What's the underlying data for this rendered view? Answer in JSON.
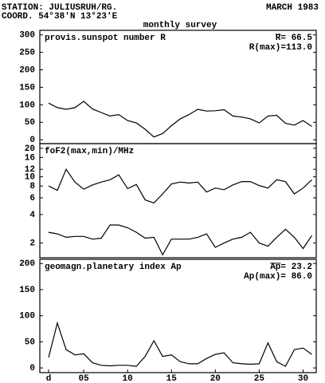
{
  "header": {
    "station": "STATION: JULIUSRUH/RG.",
    "coord": "COORD. 54°38'N 13°23'E",
    "date": "MARCH 1983",
    "subtitle": "monthly survey"
  },
  "chart_data": [
    {
      "type": "line",
      "title": "provis.sunspot number R",
      "annotations": [
        "R= 66.5",
        "R(max)=113.0"
      ],
      "x": [
        1,
        2,
        3,
        4,
        5,
        6,
        7,
        8,
        9,
        10,
        11,
        12,
        13,
        14,
        15,
        16,
        17,
        18,
        19,
        20,
        21,
        22,
        23,
        24,
        25,
        26,
        27,
        28,
        29,
        30,
        31
      ],
      "xlim": [
        0,
        31.5
      ],
      "ylim": [
        -11,
        313
      ],
      "yticks": [
        0,
        50,
        100,
        150,
        200,
        250,
        300
      ],
      "log": false,
      "series": [
        {
          "color": "#000000",
          "values": [
            105,
            92,
            87,
            92,
            110,
            88,
            78,
            68,
            72,
            55,
            48,
            30,
            8,
            18,
            40,
            60,
            72,
            87,
            82,
            83,
            86,
            68,
            65,
            60,
            48,
            68,
            70,
            47,
            42,
            55,
            38
          ]
        }
      ]
    },
    {
      "type": "line",
      "title": "foF2(max,min)/MHz",
      "annotations": [],
      "x": [
        1,
        2,
        3,
        4,
        5,
        6,
        7,
        8,
        9,
        10,
        11,
        12,
        13,
        14,
        15,
        16,
        17,
        18,
        19,
        20,
        21,
        22,
        23,
        24,
        25,
        26,
        27,
        28,
        29,
        30,
        31
      ],
      "xlim": [
        0,
        31.5
      ],
      "ylim": [
        1.4,
        22.4
      ],
      "yticks": [
        2,
        4,
        6,
        8,
        10,
        12,
        16,
        20
      ],
      "log": true,
      "series": [
        {
          "color": "#000000",
          "values": [
            8,
            7.2,
            12,
            8.8,
            7.4,
            8.2,
            8.8,
            9.3,
            10.5,
            7.5,
            8.3,
            5.7,
            5.3,
            6.6,
            8.4,
            8.8,
            8.6,
            8.8,
            6.9,
            7.6,
            7.3,
            8.2,
            8.9,
            8.9,
            8.1,
            7.6,
            9.3,
            8.9,
            6.6,
            7.6,
            9.3
          ]
        },
        {
          "color": "#000000",
          "values": [
            2.6,
            2.5,
            2.3,
            2.35,
            2.35,
            2.2,
            2.25,
            3.1,
            3.1,
            2.9,
            2.6,
            2.25,
            2.3,
            1.5,
            2.2,
            2.2,
            2.2,
            2.3,
            2.5,
            1.8,
            2.0,
            2.2,
            2.3,
            2.6,
            2.0,
            1.85,
            2.3,
            2.8,
            2.3,
            1.75,
            2.4
          ]
        }
      ]
    },
    {
      "type": "line",
      "title": "geomagn.planetary index Ap",
      "annotations": [
        "Ap= 23.2",
        "Ap(max)= 86.0"
      ],
      "x": [
        1,
        2,
        3,
        4,
        5,
        6,
        7,
        8,
        9,
        10,
        11,
        12,
        13,
        14,
        15,
        16,
        17,
        18,
        19,
        20,
        21,
        22,
        23,
        24,
        25,
        26,
        27,
        28,
        29,
        30,
        31
      ],
      "xlim": [
        0,
        31.5
      ],
      "ylim": [
        -9,
        208
      ],
      "yticks": [
        0,
        50,
        100,
        150,
        200
      ],
      "log": false,
      "xticks": [
        {
          "value": 1,
          "label": "d"
        },
        {
          "value": 5,
          "label": "05"
        },
        10,
        15,
        20,
        25,
        30
      ],
      "series": [
        {
          "color": "#000000",
          "values": [
            20,
            86,
            35,
            25,
            27,
            10,
            5,
            4,
            5,
            5,
            3,
            22,
            52,
            22,
            25,
            12,
            8,
            8,
            18,
            26,
            29,
            10,
            8,
            7,
            8,
            48,
            12,
            3,
            35,
            38,
            26
          ]
        }
      ]
    }
  ]
}
